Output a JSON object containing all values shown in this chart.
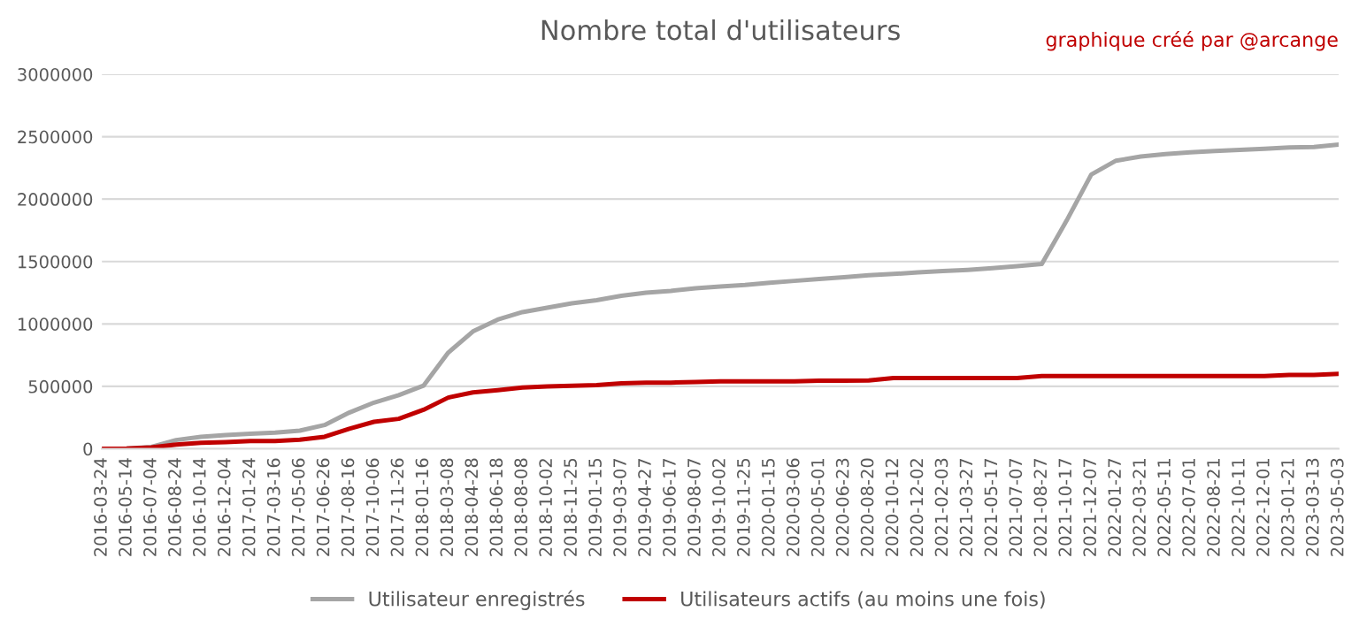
{
  "chart_data": {
    "type": "line",
    "title": "Nombre total d'utilisateurs",
    "annotations": [
      "graphique créé par @arcange"
    ],
    "categories": [
      "2016-03-24",
      "2016-05-14",
      "2016-07-04",
      "2016-08-24",
      "2016-10-14",
      "2016-12-04",
      "2017-01-24",
      "2017-03-16",
      "2017-05-06",
      "2017-06-26",
      "2017-08-16",
      "2017-10-06",
      "2017-11-26",
      "2018-01-16",
      "2018-03-08",
      "2018-04-28",
      "2018-06-18",
      "2018-08-08",
      "2018-10-02",
      "2018-11-25",
      "2019-01-15",
      "2019-03-07",
      "2019-04-27",
      "2019-06-17",
      "2019-08-07",
      "2019-10-02",
      "2019-11-25",
      "2020-01-15",
      "2020-03-06",
      "2020-05-01",
      "2020-06-23",
      "2020-08-20",
      "2020-10-12",
      "2020-12-02",
      "2021-02-03",
      "2021-03-27",
      "2021-05-17",
      "2021-07-07",
      "2021-08-27",
      "2021-10-17",
      "2021-12-07",
      "2022-01-27",
      "2022-03-21",
      "2022-05-11",
      "2022-07-01",
      "2022-08-21",
      "2022-10-11",
      "2022-12-01",
      "2023-01-21",
      "2023-03-13",
      "2023-05-03"
    ],
    "series": [
      {
        "name": "Utilisateur enregistrés",
        "color": "#a5a5a5",
        "values": [
          0,
          2000,
          15000,
          70000,
          95000,
          110000,
          120000,
          130000,
          145000,
          190000,
          290000,
          370000,
          430000,
          505000,
          770000,
          940000,
          1035000,
          1095000,
          1130000,
          1165000,
          1190000,
          1225000,
          1250000,
          1265000,
          1285000,
          1300000,
          1312000,
          1330000,
          1345000,
          1360000,
          1375000,
          1390000,
          1400000,
          1413000,
          1423000,
          1433000,
          1447000,
          1462000,
          1480000,
          1827000,
          2197000,
          2308000,
          2341000,
          2361000,
          2375000,
          2385000,
          2394000,
          2404000,
          2413000,
          2418000,
          2437000
        ]
      },
      {
        "name": "Utilisateurs actifs (au moins une fois)",
        "color": "#c00000",
        "values": [
          0,
          1000,
          10000,
          34000,
          48000,
          53000,
          62000,
          62000,
          72000,
          96000,
          160000,
          216000,
          240000,
          312000,
          410000,
          452000,
          470000,
          490000,
          500000,
          505000,
          510000,
          525000,
          530000,
          530000,
          535000,
          540000,
          540000,
          540000,
          540000,
          545000,
          545000,
          548000,
          567000,
          567000,
          567000,
          567000,
          567000,
          567000,
          582000,
          582000,
          582000,
          582000,
          582000,
          582000,
          582000,
          582000,
          582000,
          582000,
          591000,
          591000,
          600000
        ]
      }
    ],
    "ylim": [
      0,
      3000000
    ],
    "yticks": [
      0,
      500000,
      1000000,
      1500000,
      2000000,
      2500000,
      3000000
    ],
    "grid": "y",
    "legend": "bottom",
    "line_style": "solid",
    "marker": "none"
  }
}
